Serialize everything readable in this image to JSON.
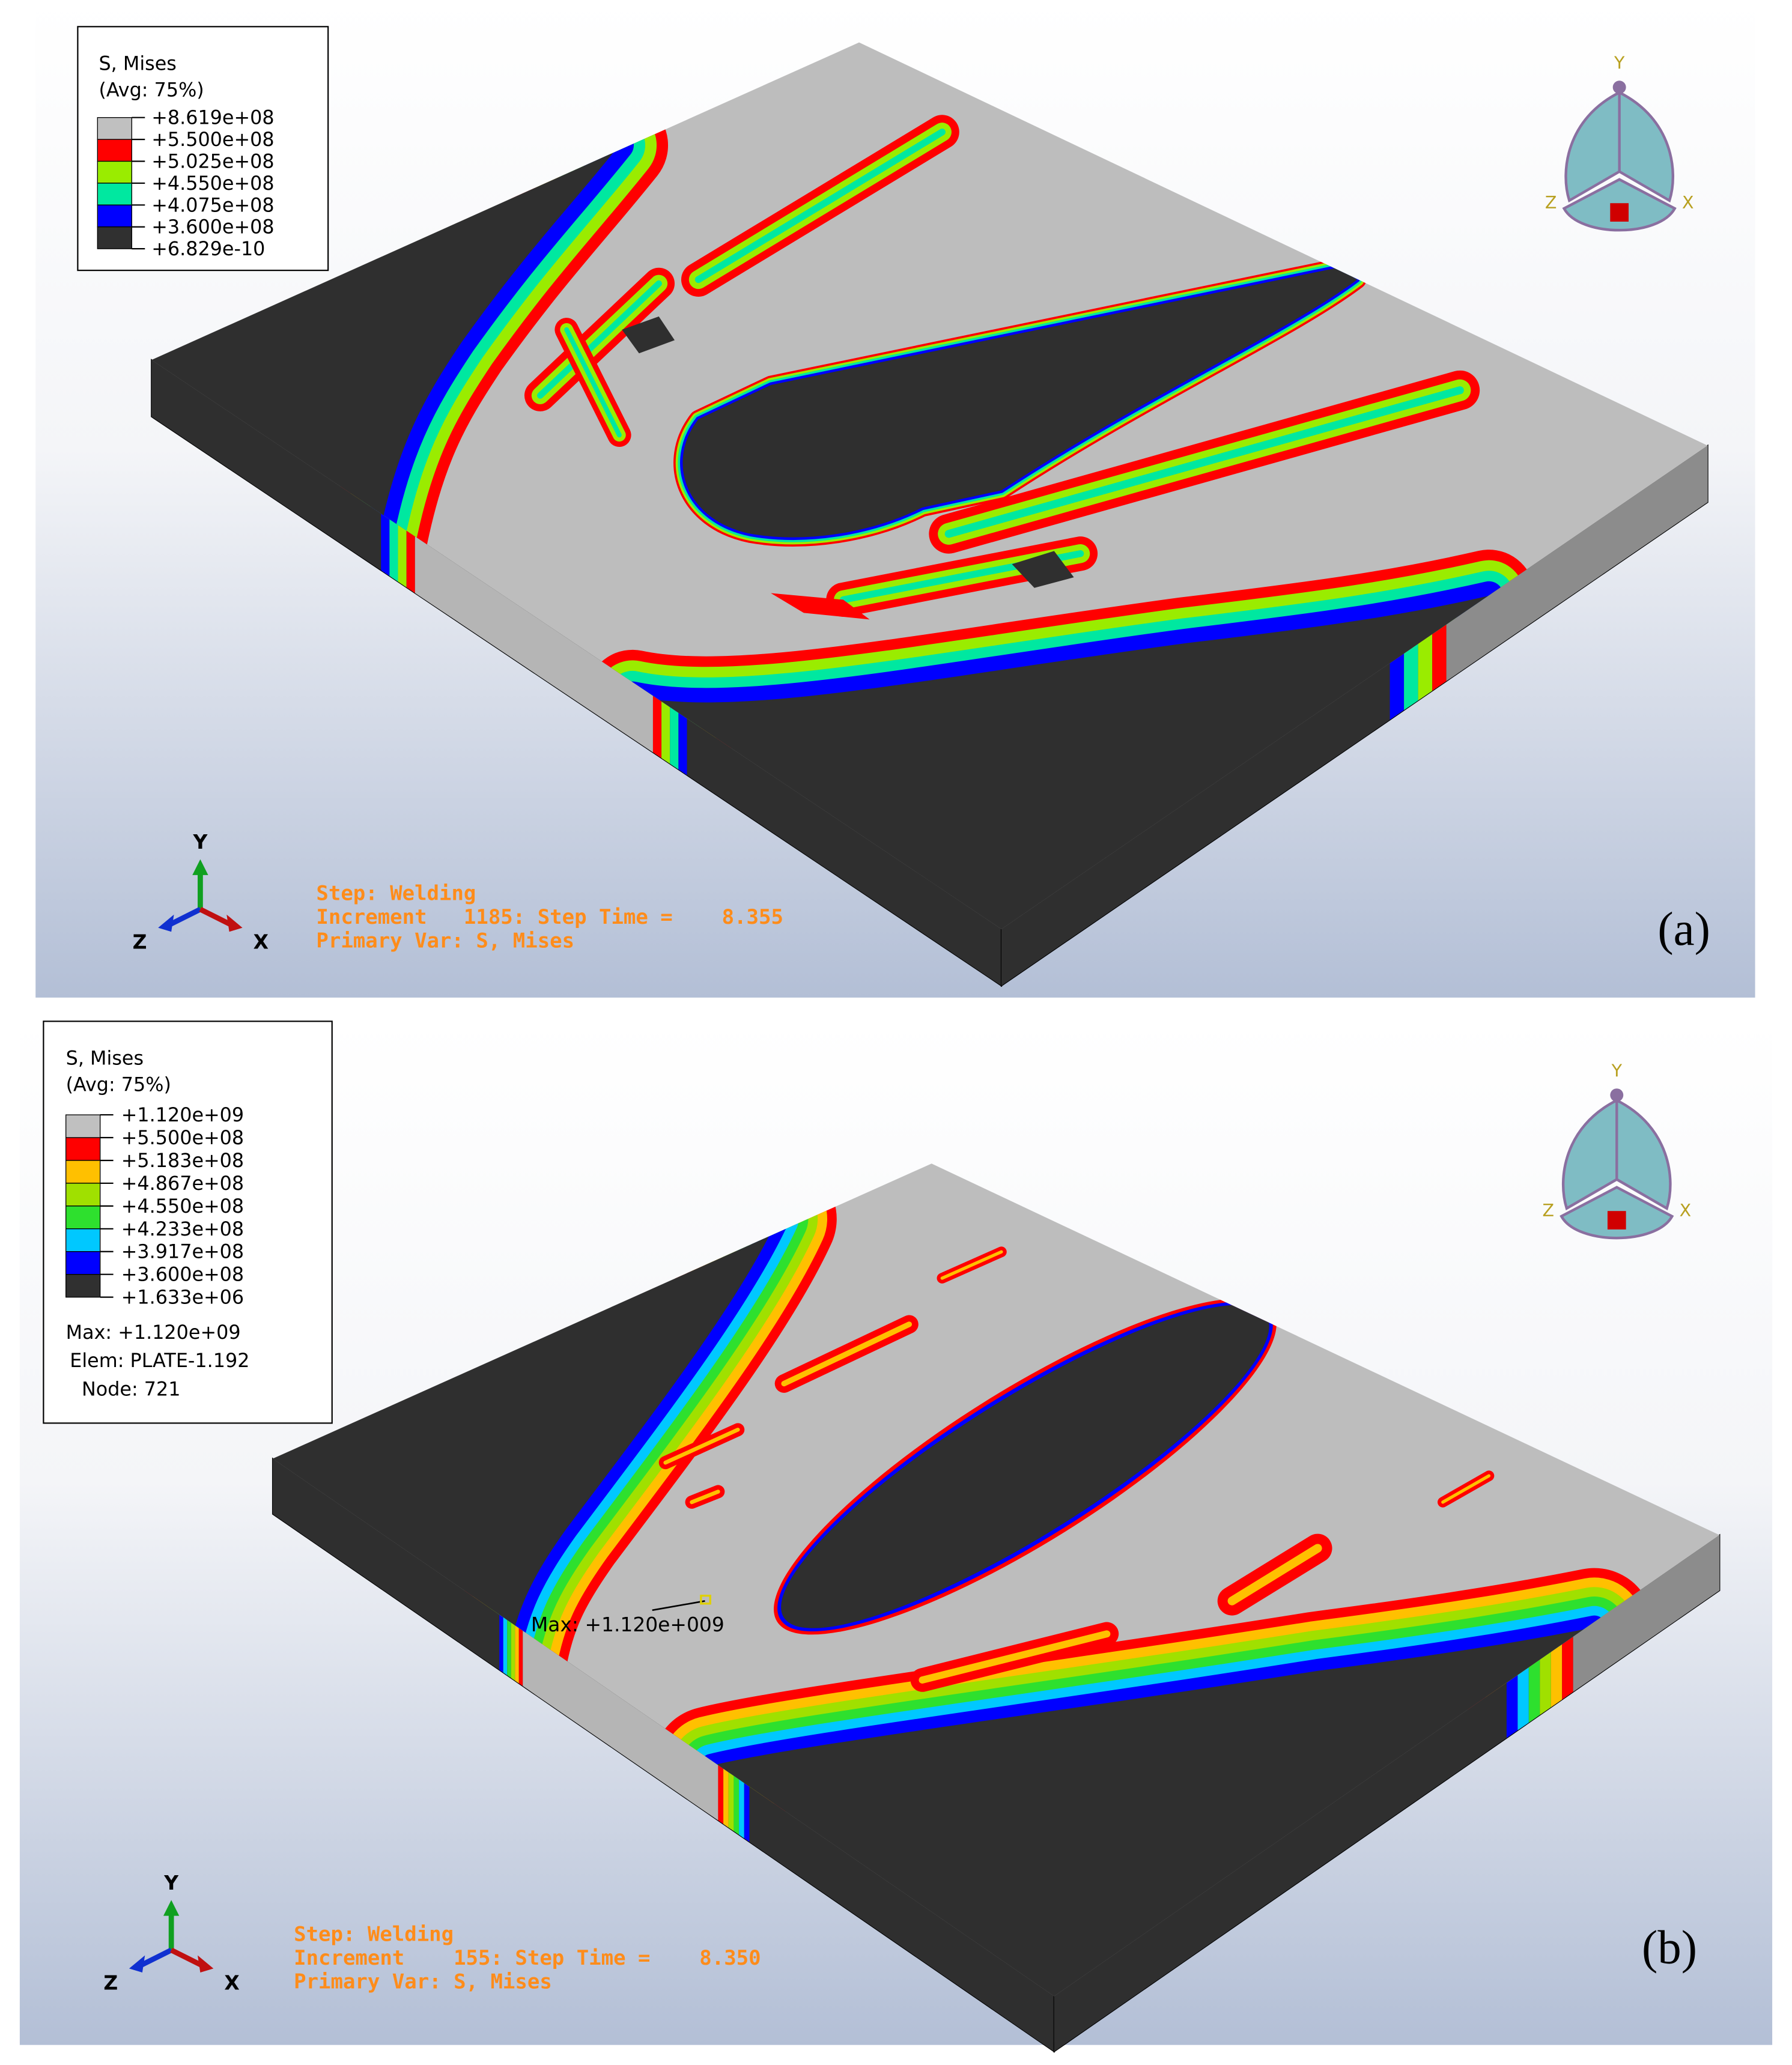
{
  "panels": [
    {
      "legend": {
        "title": "S, Mises",
        "subtitle": "(Avg: 75%)",
        "levels": [
          "+8.619e+08",
          "+5.500e+08",
          "+5.025e+08",
          "+4.550e+08",
          "+4.075e+08",
          "+3.600e+08",
          "+6.829e-10"
        ],
        "colors": [
          "#c0c0c0",
          "#ff0000",
          "#9aec00",
          "#00e8a0",
          "#0000ff",
          "#303030"
        ]
      },
      "step": [
        "Step: Welding",
        "Increment   1185: Step Time =    8.355",
        "Primary Var: S, Mises"
      ],
      "triad": [
        "Y",
        "Z",
        "X"
      ],
      "view_cube": [
        "Y",
        "Z",
        "X"
      ],
      "label": "(a)"
    },
    {
      "legend": {
        "title": "S, Mises",
        "subtitle": "(Avg: 75%)",
        "levels": [
          "+1.120e+09",
          "+5.500e+08",
          "+5.183e+08",
          "+4.867e+08",
          "+4.550e+08",
          "+4.233e+08",
          "+3.917e+08",
          "+3.600e+08",
          "+1.633e+06"
        ],
        "colors": [
          "#c0c0c0",
          "#ff0000",
          "#ffc000",
          "#a0e000",
          "#2ee02e",
          "#00c8ff",
          "#0000ff",
          "#303030"
        ]
      },
      "max_info": [
        "Max: +1.120e+09",
        "Elem: PLATE-1.192",
        "Node: 721"
      ],
      "max_annotation": "Max: +1.120e+009",
      "step": [
        "Step: Welding",
        "Increment    155: Step Time =    8.350",
        "Primary Var: S, Mises"
      ],
      "triad": [
        "Y",
        "Z",
        "X"
      ],
      "view_cube": [
        "Y",
        "Z",
        "X"
      ],
      "label": "(b)"
    }
  ]
}
